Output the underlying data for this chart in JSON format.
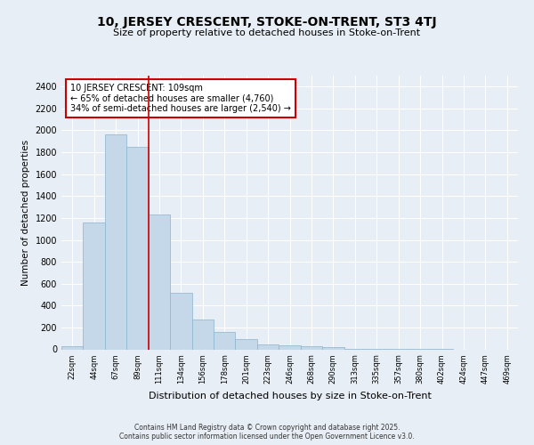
{
  "title1": "10, JERSEY CRESCENT, STOKE-ON-TRENT, ST3 4TJ",
  "title2": "Size of property relative to detached houses in Stoke-on-Trent",
  "xlabel": "Distribution of detached houses by size in Stoke-on-Trent",
  "ylabel": "Number of detached properties",
  "categories": [
    "22sqm",
    "44sqm",
    "67sqm",
    "89sqm",
    "111sqm",
    "134sqm",
    "156sqm",
    "178sqm",
    "201sqm",
    "223sqm",
    "246sqm",
    "268sqm",
    "290sqm",
    "313sqm",
    "335sqm",
    "357sqm",
    "380sqm",
    "402sqm",
    "424sqm",
    "447sqm",
    "469sqm"
  ],
  "values": [
    25,
    1160,
    1960,
    1850,
    1230,
    515,
    270,
    160,
    95,
    45,
    35,
    30,
    20,
    8,
    3,
    2,
    1,
    1,
    0,
    0,
    0
  ],
  "bar_color": "#c5d8ea",
  "bar_edge_color": "#8ab4cc",
  "bg_color": "#e8eef5",
  "grid_color": "#ffffff",
  "red_line_index": 4,
  "annotation_line1": "10 JERSEY CRESCENT: 109sqm",
  "annotation_line2": "← 65% of detached houses are smaller (4,760)",
  "annotation_line3": "34% of semi-detached houses are larger (2,540) →",
  "annotation_box_color": "#ffffff",
  "annotation_box_edge": "#cc0000",
  "footer1": "Contains HM Land Registry data © Crown copyright and database right 2025.",
  "footer2": "Contains public sector information licensed under the Open Government Licence v3.0.",
  "ylim": [
    0,
    2500
  ],
  "yticks": [
    0,
    200,
    400,
    600,
    800,
    1000,
    1200,
    1400,
    1600,
    1800,
    2000,
    2200,
    2400
  ]
}
